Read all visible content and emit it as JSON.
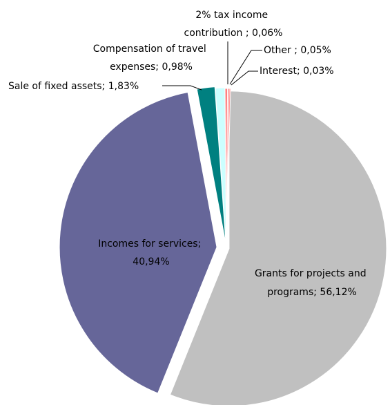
{
  "chart_data": {
    "type": "pie",
    "title": "",
    "slices": [
      {
        "label": "Grants for projects and programs",
        "value": 56.12,
        "display": "Grants for projects and programs; 56,12%",
        "color": "#c0c0c0"
      },
      {
        "label": "Incomes for services",
        "value": 40.94,
        "display": "Incomes for services; 40,94%",
        "color": "#666699"
      },
      {
        "label": "Sale of fixed assets",
        "value": 1.83,
        "display": "Sale of fixed assets; 1,83%",
        "color": "#008080"
      },
      {
        "label": "Compensation of travel expenses",
        "value": 0.98,
        "display": "Compensation of travel expenses; 0,98%",
        "color": "#ccffff"
      },
      {
        "label": "2% tax income contribution",
        "value": 0.06,
        "display": "2% tax income contribution ; 0,06%",
        "color": "#ff8080"
      },
      {
        "label": "Other",
        "value": 0.05,
        "display": "Other ; 0,05%",
        "color": "#ff8080"
      },
      {
        "label": "Interest",
        "value": 0.03,
        "display": "Interest; 0,03%",
        "color": "#ff8080"
      }
    ],
    "legend": "none",
    "grid": false
  }
}
